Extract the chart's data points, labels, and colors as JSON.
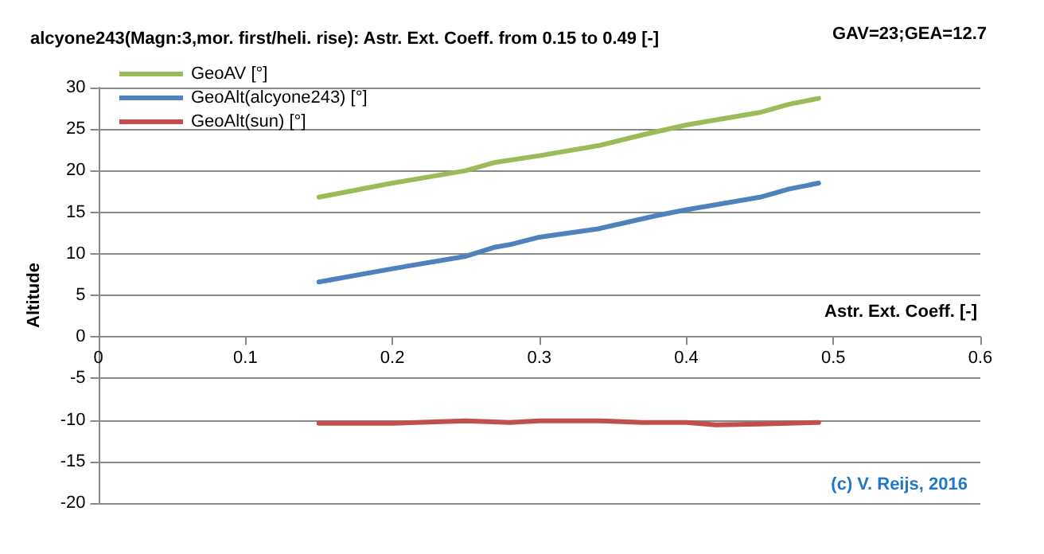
{
  "chart_data": {
    "type": "line",
    "title": "alcyone243(Magn:3,mor. first/heli. rise): Astr. Ext. Coeff. from 0.15 to 0.49 [-]",
    "xlabel": "Astr. Ext. Coeff. [-]",
    "ylabel": "Altitude",
    "annotations": [
      "GAV=23;GEA=12.7",
      "(c) V. Reijs, 2016"
    ],
    "series": [
      {
        "name": "GeoAV [°]",
        "color": "#9bbb59",
        "x": [
          0.15,
          0.2,
          0.25,
          0.27,
          0.3,
          0.34,
          0.37,
          0.4,
          0.45,
          0.47,
          0.49
        ],
        "values": [
          16.8,
          18.5,
          20,
          21,
          21.8,
          23,
          24.3,
          25.5,
          27,
          28,
          28.7
        ]
      },
      {
        "name": "GeoAlt(alcyone243) [°]",
        "color": "#4f81bd",
        "x": [
          0.15,
          0.2,
          0.25,
          0.27,
          0.28,
          0.3,
          0.34,
          0.38,
          0.4,
          0.45,
          0.47,
          0.49
        ],
        "values": [
          6.6,
          8.2,
          9.7,
          10.8,
          11.1,
          12,
          13,
          14.6,
          15.3,
          16.8,
          17.8,
          18.5
        ]
      },
      {
        "name": "GeoAlt(sun) [°]",
        "color": "#c0504d",
        "x": [
          0.15,
          0.2,
          0.25,
          0.28,
          0.3,
          0.34,
          0.37,
          0.4,
          0.42,
          0.45,
          0.49
        ],
        "values": [
          -10.4,
          -10.4,
          -10.1,
          -10.3,
          -10.1,
          -10.1,
          -10.3,
          -10.3,
          -10.6,
          -10.5,
          -10.3
        ]
      }
    ],
    "xlim": [
      0,
      0.6
    ],
    "xticks": [
      0,
      0.1,
      0.2,
      0.3,
      0.4,
      0.5,
      0.6
    ],
    "ylim": [
      -20,
      30
    ],
    "yticks": [
      -20,
      -15,
      -10,
      -5,
      0,
      5,
      10,
      15,
      20,
      25,
      30
    ],
    "grid": "y",
    "legend": "top left",
    "marker": "none",
    "line_style": "solid"
  }
}
